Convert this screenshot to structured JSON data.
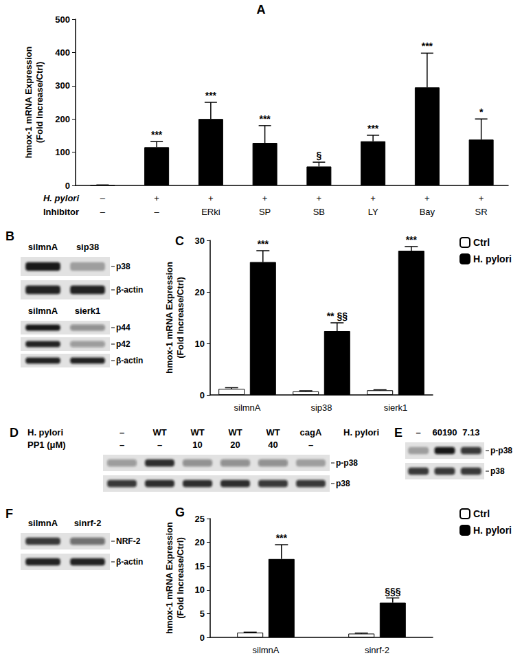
{
  "chart_data": [
    {
      "type": "bar",
      "title": "A",
      "y_label": "hmox-1 mRNA Expression\n(Fold Increase/Ctrl)",
      "row_labels": [
        "H. pylori",
        "Inhibitor"
      ],
      "categories": [
        "–\n–",
        "+\n–",
        "+\nERki",
        "+\nSP",
        "+\nSB",
        "+\nLY",
        "+\nBay",
        "+\nSR"
      ],
      "values": [
        1,
        115,
        200,
        128,
        57,
        133,
        295,
        138
      ],
      "errors": [
        0.5,
        17,
        50,
        52,
        13,
        18,
        103,
        62
      ],
      "annotations": [
        null,
        "***",
        "***",
        "***",
        "§",
        "***",
        "***",
        "*"
      ],
      "color": "#000000",
      "ylim": [
        0,
        500
      ],
      "yticks": [
        0,
        100,
        200,
        300,
        400,
        500
      ],
      "grid": false
    },
    {
      "type": "bar",
      "title": "C",
      "y_label": "hmox-1 mRNA Expression\n(Fold Increase/Ctrl)",
      "categories": [
        "silmnA",
        "sip38",
        "sierk1"
      ],
      "series": [
        {
          "name": "Ctrl",
          "color": "#ffffff",
          "values": [
            1.2,
            0.7,
            0.9
          ],
          "errors": [
            0.2,
            0.1,
            0.1
          ]
        },
        {
          "name": "H. pylori",
          "color": "#000000",
          "values": [
            25.8,
            12.4,
            28
          ],
          "errors": [
            2.2,
            1.6,
            0.8
          ],
          "annotations": [
            "***",
            "** §§",
            "***"
          ]
        }
      ],
      "ylim": [
        0,
        30
      ],
      "yticks": [
        0,
        10,
        20,
        30
      ],
      "grid": false,
      "legend": "upper right"
    },
    {
      "type": "bar",
      "title": "G",
      "y_label": "hmox-1 mRNA Expression\n(Fold Increase/Ctrl)",
      "categories": [
        "silmnA",
        "sinrf-2"
      ],
      "series": [
        {
          "name": "Ctrl",
          "color": "#ffffff",
          "values": [
            1.0,
            0.8
          ],
          "errors": [
            0.1,
            0.1
          ]
        },
        {
          "name": "H. pylori",
          "color": "#000000",
          "values": [
            16.5,
            7.3
          ],
          "errors": [
            3.0,
            1.0
          ],
          "annotations": [
            "***",
            "§§§"
          ]
        }
      ],
      "ylim": [
        0,
        25
      ],
      "yticks": [
        0,
        5,
        10,
        15,
        20,
        25
      ],
      "grid": false,
      "legend": "upper right"
    }
  ],
  "blots": [
    {
      "panel": "B",
      "blocks": [
        {
          "header_rows": [
            {
              "values": [
                "silmnA",
                "sip38"
              ]
            }
          ],
          "rows": [
            {
              "label": "p38",
              "intensity": [
                0.95,
                0.3
              ]
            },
            {
              "label": "β-actin",
              "intensity": [
                0.9,
                0.9
              ]
            }
          ]
        },
        {
          "header_rows": [
            {
              "values": [
                "silmnA",
                "sierk1"
              ]
            }
          ],
          "rows": [
            {
              "label": "p44",
              "intensity": [
                0.95,
                0.4
              ]
            },
            {
              "label": "p42",
              "intensity": [
                0.9,
                0.35
              ]
            },
            {
              "label": "β-actin",
              "intensity": [
                0.9,
                0.9
              ]
            }
          ]
        }
      ]
    },
    {
      "panel": "D",
      "blocks": [
        {
          "header_rows": [
            {
              "label": "H. pylori",
              "values": [
                "–",
                "WT",
                "WT",
                "WT",
                "WT",
                "cagA"
              ]
            },
            {
              "label": "PP1 (μM)",
              "values": [
                "–",
                "–",
                "10",
                "20",
                "40",
                "–"
              ]
            }
          ],
          "rows": [
            {
              "label": "p-p38",
              "intensity": [
                0.35,
                0.85,
                0.4,
                0.4,
                0.4,
                0.3
              ]
            },
            {
              "label": "p38",
              "intensity": [
                0.8,
                0.85,
                0.85,
                0.85,
                0.8,
                0.8
              ]
            }
          ]
        }
      ]
    },
    {
      "panel": "E",
      "blocks": [
        {
          "header_rows": [
            {
              "label": "H. pylori",
              "values": [
                "–",
                "60190",
                "7.13"
              ]
            }
          ],
          "rows": [
            {
              "label": "p-p38",
              "intensity": [
                0.3,
                0.95,
                0.8
              ]
            },
            {
              "label": "p38",
              "intensity": [
                0.8,
                0.8,
                0.8
              ]
            }
          ]
        }
      ]
    },
    {
      "panel": "F",
      "blocks": [
        {
          "header_rows": [
            {
              "values": [
                "silmnA",
                "sinrf-2"
              ]
            }
          ],
          "rows": [
            {
              "label": "NRF-2",
              "intensity": [
                0.8,
                0.55
              ]
            },
            {
              "label": "β-actin",
              "intensity": [
                0.9,
                0.9
              ]
            }
          ]
        }
      ]
    }
  ]
}
